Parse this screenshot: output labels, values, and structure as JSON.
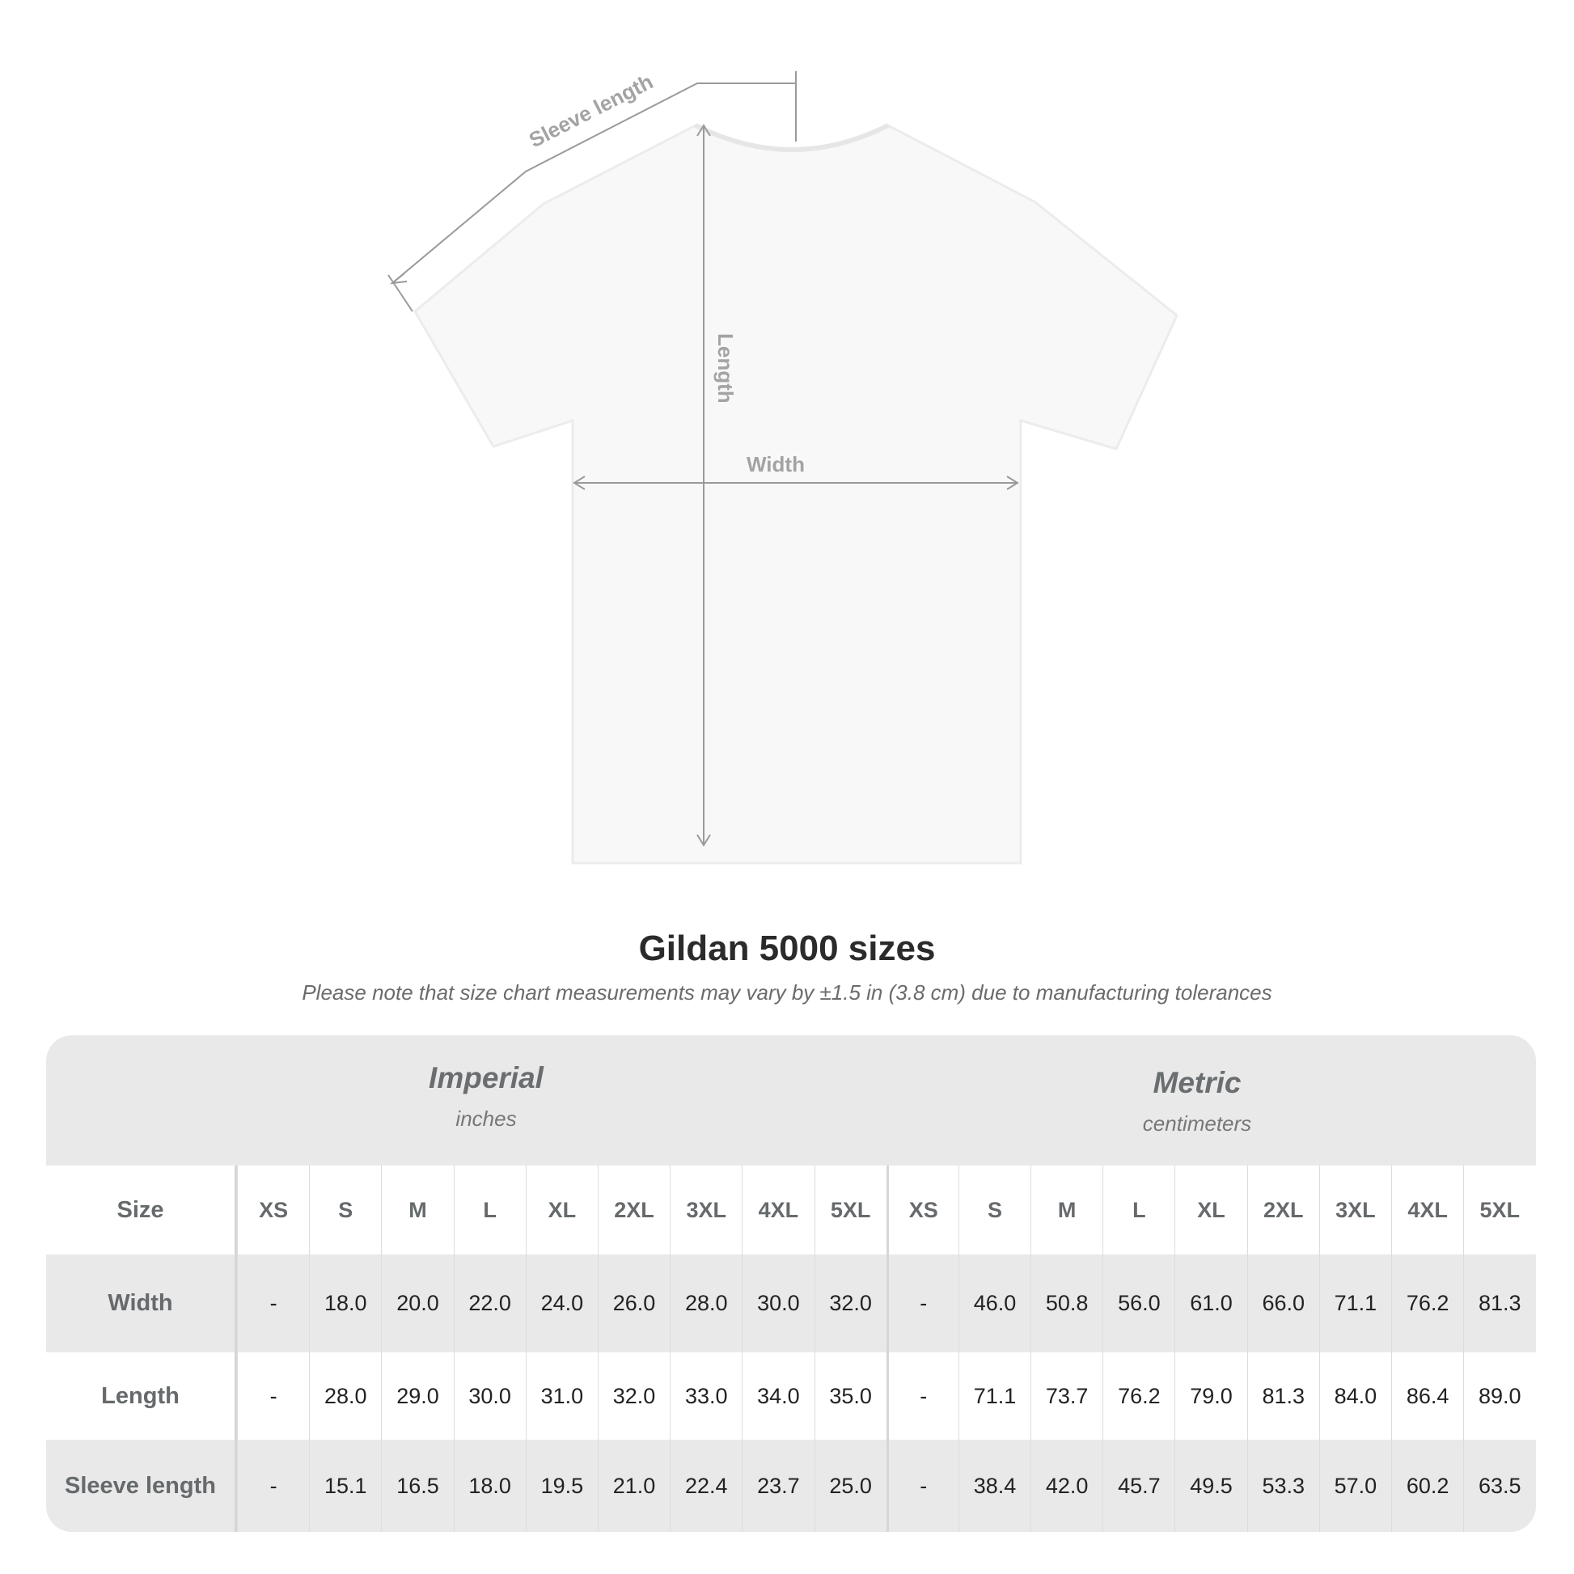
{
  "diagram": {
    "sleeve_label": "Sleeve length",
    "length_label": "Length",
    "width_label": "Width"
  },
  "title": "Gildan 5000 sizes",
  "subtitle": "Please note that size chart measurements may vary by ±1.5 in (3.8 cm) due to manufacturing tolerances",
  "systems": [
    {
      "name": "Imperial",
      "unit": "inches"
    },
    {
      "name": "Metric",
      "unit": "centimeters"
    }
  ],
  "table": {
    "size_header": "Size",
    "sizes": [
      "XS",
      "S",
      "M",
      "L",
      "XL",
      "2XL",
      "3XL",
      "4XL",
      "5XL"
    ],
    "rows": [
      {
        "label": "Width",
        "imperial": [
          "-",
          "18.0",
          "20.0",
          "22.0",
          "24.0",
          "26.0",
          "28.0",
          "30.0",
          "32.0"
        ],
        "metric": [
          "-",
          "46.0",
          "50.8",
          "56.0",
          "61.0",
          "66.0",
          "71.1",
          "76.2",
          "81.3"
        ]
      },
      {
        "label": "Length",
        "imperial": [
          "-",
          "28.0",
          "29.0",
          "30.0",
          "31.0",
          "32.0",
          "33.0",
          "34.0",
          "35.0"
        ],
        "metric": [
          "-",
          "71.1",
          "73.7",
          "76.2",
          "79.0",
          "81.3",
          "84.0",
          "86.4",
          "89.0"
        ]
      },
      {
        "label": "Sleeve length",
        "imperial": [
          "-",
          "15.1",
          "16.5",
          "18.0",
          "19.5",
          "21.0",
          "22.4",
          "23.7",
          "25.0"
        ],
        "metric": [
          "-",
          "38.4",
          "42.0",
          "45.7",
          "49.5",
          "53.3",
          "57.0",
          "60.2",
          "63.5"
        ]
      }
    ]
  },
  "colors": {
    "band": "#e9e9e9",
    "label_text": "#666a6c",
    "measure_line": "#9a9a9a"
  }
}
